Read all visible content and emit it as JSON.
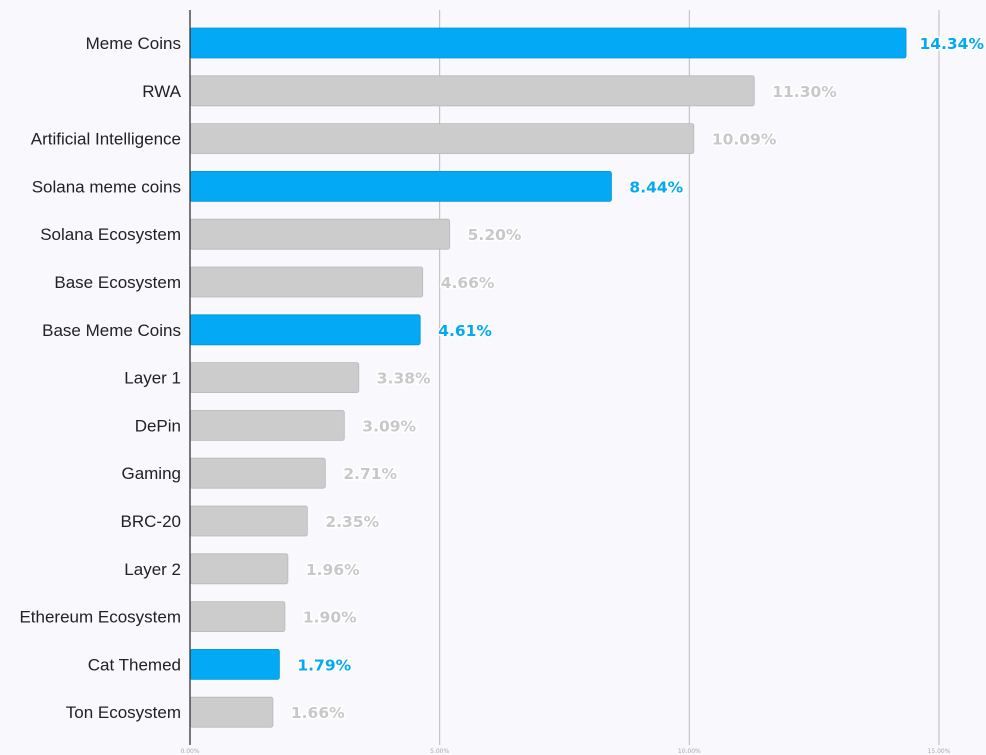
{
  "chart_data": {
    "type": "bar",
    "orientation": "horizontal",
    "categories": [
      "Meme Coins",
      "RWA",
      "Artificial Intelligence",
      "Solana meme coins",
      "Solana Ecosystem",
      "Base Ecosystem",
      "Base Meme Coins",
      "Layer 1",
      "DePin",
      "Gaming",
      "BRC-20",
      "Layer 2",
      "Ethereum Ecosystem",
      "Cat Themed",
      "Ton Ecosystem"
    ],
    "values": [
      14.34,
      11.3,
      10.09,
      8.44,
      5.2,
      4.66,
      4.61,
      3.38,
      3.09,
      2.71,
      2.35,
      1.96,
      1.9,
      1.79,
      1.66
    ],
    "value_labels": [
      "14.34%",
      "11.30%",
      "10.09%",
      "8.44%",
      "5.20%",
      "4.66%",
      "4.61%",
      "3.38%",
      "3.09%",
      "2.71%",
      "2.35%",
      "1.96%",
      "1.90%",
      "1.79%",
      "1.66%"
    ],
    "highlighted": [
      "Meme Coins",
      "Solana meme coins",
      "Base Meme Coins",
      "Cat Themed"
    ],
    "xlim": [
      0,
      15
    ],
    "ticks": [
      0,
      5,
      10,
      15
    ],
    "tick_labels": [
      "0.00%",
      "5.00%",
      "10.00%",
      "15.00%"
    ],
    "grid": true,
    "colors": {
      "highlight": "#03a9f4",
      "default": "#cccccc",
      "grid": "#bbbbbb",
      "axis": "#333333",
      "default_label": "#c8c8c8"
    }
  }
}
